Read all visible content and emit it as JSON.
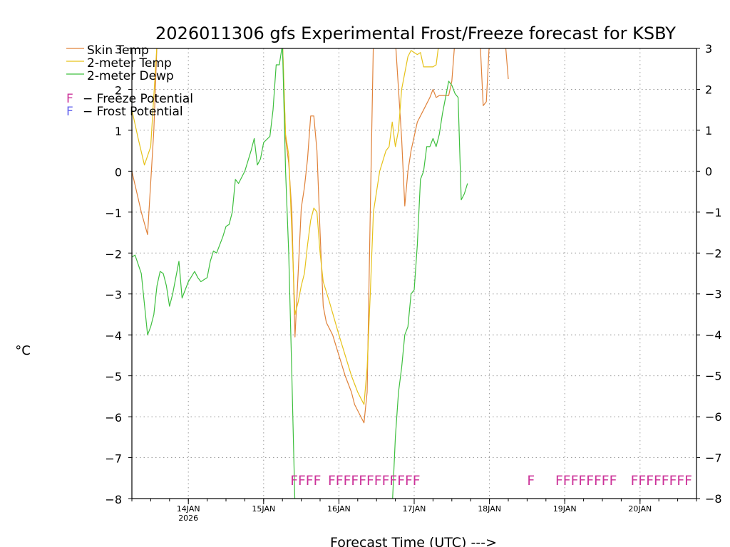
{
  "chart_data": {
    "type": "line",
    "title": "2026011306 gfs Experimental Frost/Freeze forecast for KSBY",
    "ylabel": "°C",
    "xlabel": "Forecast Time (UTC) --->",
    "ylim": [
      -8,
      3
    ],
    "xlim_hours": [
      0,
      180
    ],
    "y_ticks": [
      3,
      2,
      1,
      0,
      -1,
      -2,
      -3,
      -4,
      -5,
      -6,
      -7,
      -8
    ],
    "y_tick_labels": [
      "3",
      "2",
      "1",
      "0",
      "−1",
      "−2",
      "−3",
      "−4",
      "−5",
      "−6",
      "−7",
      "−8"
    ],
    "x_ticks": [
      {
        "hour": 18,
        "label": "14JAN",
        "sublabel": "2026"
      },
      {
        "hour": 42,
        "label": "15JAN",
        "sublabel": ""
      },
      {
        "hour": 66,
        "label": "16JAN",
        "sublabel": ""
      },
      {
        "hour": 90,
        "label": "17JAN",
        "sublabel": ""
      },
      {
        "hour": 114,
        "label": "18JAN",
        "sublabel": ""
      },
      {
        "hour": 138,
        "label": "19JAN",
        "sublabel": ""
      },
      {
        "hour": 162,
        "label": "20JAN",
        "sublabel": ""
      }
    ],
    "grid": true,
    "legend": {
      "placement": "top-left",
      "series_entries": [
        "Skin Temp",
        "2-meter Temp",
        "2-meter Dewp"
      ],
      "symbol_entries": [
        {
          "symbol": "F",
          "text": "− Freeze Potential",
          "color": "#cc3399"
        },
        {
          "symbol": "F",
          "text": "− Frost Potential",
          "color": "#6666ee"
        }
      ]
    },
    "series": [
      {
        "name": "Skin Temp",
        "color": "#e0823a",
        "points": [
          [
            0,
            0
          ],
          [
            3,
            -1
          ],
          [
            5,
            -1.55
          ],
          [
            7,
            1
          ],
          [
            8,
            3.1
          ],
          [
            null,
            null
          ],
          [
            48,
            3.2
          ],
          [
            49,
            0.8
          ],
          [
            50,
            0.2
          ],
          [
            51,
            -1
          ],
          [
            52,
            -4.05
          ],
          [
            53,
            -2.5
          ],
          [
            54,
            -0.9
          ],
          [
            55,
            -0.4
          ],
          [
            56,
            0.3
          ],
          [
            57,
            1.35
          ],
          [
            58,
            1.35
          ],
          [
            59,
            0.5
          ],
          [
            60,
            -1.5
          ],
          [
            61,
            -3.3
          ],
          [
            62,
            -3.7
          ],
          [
            64,
            -4
          ],
          [
            66,
            -4.5
          ],
          [
            68,
            -5
          ],
          [
            70,
            -5.4
          ],
          [
            71,
            -5.7
          ],
          [
            73,
            -6
          ],
          [
            74,
            -6.15
          ],
          [
            75,
            -5.4
          ],
          [
            76,
            -1
          ],
          [
            77,
            3.2
          ],
          [
            null,
            null
          ],
          [
            84,
            3.2
          ],
          [
            86,
            0.8
          ],
          [
            87,
            -0.85
          ],
          [
            88,
            0
          ],
          [
            89,
            0.5
          ],
          [
            91,
            1.2
          ],
          [
            93,
            1.5
          ],
          [
            95,
            1.8
          ],
          [
            96,
            2
          ],
          [
            97,
            1.8
          ],
          [
            98,
            1.85
          ],
          [
            101,
            1.85
          ],
          [
            102,
            2.2
          ],
          [
            103,
            3.2
          ],
          [
            null,
            null
          ],
          [
            111,
            3.2
          ],
          [
            112,
            1.6
          ],
          [
            113,
            1.7
          ],
          [
            114,
            3.2
          ],
          [
            null,
            null
          ],
          [
            119,
            3.2
          ],
          [
            120,
            2.25
          ]
        ]
      },
      {
        "name": "2-meter Temp",
        "color": "#e6c21a",
        "points": [
          [
            0,
            1.5
          ],
          [
            2,
            0.8
          ],
          [
            4,
            0.15
          ],
          [
            6,
            0.6
          ],
          [
            8,
            3.1
          ],
          [
            null,
            null
          ],
          [
            48,
            3.2
          ],
          [
            49,
            0.9
          ],
          [
            50,
            0.4
          ],
          [
            51,
            -1.5
          ],
          [
            52,
            -3.5
          ],
          [
            53,
            -3.2
          ],
          [
            54,
            -2.8
          ],
          [
            55,
            -2.5
          ],
          [
            56,
            -1.8
          ],
          [
            57,
            -1.2
          ],
          [
            58,
            -0.9
          ],
          [
            59,
            -1
          ],
          [
            60,
            -2
          ],
          [
            61,
            -2.7
          ],
          [
            63,
            -3.2
          ],
          [
            66,
            -4
          ],
          [
            70,
            -5
          ],
          [
            72,
            -5.4
          ],
          [
            74,
            -5.7
          ],
          [
            75,
            -4.8
          ],
          [
            76,
            -3
          ],
          [
            77,
            -1
          ],
          [
            79,
            0
          ],
          [
            81,
            0.5
          ],
          [
            82,
            0.6
          ],
          [
            83,
            1.2
          ],
          [
            84,
            0.6
          ],
          [
            85,
            1
          ],
          [
            86,
            2
          ],
          [
            88,
            2.8
          ],
          [
            89,
            2.95
          ],
          [
            91,
            2.85
          ],
          [
            92,
            2.9
          ],
          [
            93,
            2.55
          ],
          [
            96,
            2.55
          ],
          [
            97,
            2.6
          ],
          [
            98,
            3.2
          ]
        ]
      },
      {
        "name": "2-meter Dewp",
        "color": "#3ebf3e",
        "points": [
          [
            0,
            -2.1
          ],
          [
            1,
            -2.05
          ],
          [
            3,
            -2.5
          ],
          [
            5,
            -4
          ],
          [
            6,
            -3.8
          ],
          [
            7,
            -3.5
          ],
          [
            8,
            -2.8
          ],
          [
            9,
            -2.45
          ],
          [
            10,
            -2.5
          ],
          [
            11,
            -2.8
          ],
          [
            12,
            -3.3
          ],
          [
            13,
            -3
          ],
          [
            14,
            -2.6
          ],
          [
            15,
            -2.2
          ],
          [
            16,
            -3.1
          ],
          [
            18,
            -2.7
          ],
          [
            20,
            -2.45
          ],
          [
            21,
            -2.6
          ],
          [
            22,
            -2.7
          ],
          [
            24,
            -2.6
          ],
          [
            25,
            -2.2
          ],
          [
            26,
            -1.95
          ],
          [
            27,
            -2
          ],
          [
            29,
            -1.6
          ],
          [
            30,
            -1.35
          ],
          [
            31,
            -1.3
          ],
          [
            32,
            -1
          ],
          [
            33,
            -0.2
          ],
          [
            34,
            -0.3
          ],
          [
            36,
            0
          ],
          [
            38,
            0.5
          ],
          [
            39,
            0.8
          ],
          [
            40,
            0.15
          ],
          [
            41,
            0.3
          ],
          [
            42,
            0.7
          ],
          [
            44,
            0.85
          ],
          [
            45,
            1.5
          ],
          [
            46,
            2.6
          ],
          [
            47,
            2.6
          ],
          [
            48,
            3.1
          ],
          [
            49,
            0
          ],
          [
            50,
            -2
          ],
          [
            51,
            -5
          ],
          [
            52,
            -8.2
          ],
          [
            null,
            null
          ],
          [
            83,
            -8.2
          ],
          [
            84,
            -6.5
          ],
          [
            85,
            -5.4
          ],
          [
            86,
            -4.8
          ],
          [
            87,
            -4
          ],
          [
            88,
            -3.8
          ],
          [
            89,
            -3
          ],
          [
            90,
            -2.9
          ],
          [
            91,
            -1.8
          ],
          [
            92,
            -0.2
          ],
          [
            93,
            0
          ],
          [
            94,
            0.6
          ],
          [
            95,
            0.6
          ],
          [
            96,
            0.8
          ],
          [
            97,
            0.6
          ],
          [
            98,
            0.9
          ],
          [
            99,
            1.4
          ],
          [
            100,
            1.8
          ],
          [
            101,
            2.2
          ],
          [
            102,
            2.1
          ],
          [
            103,
            1.9
          ],
          [
            104,
            1.8
          ],
          [
            105,
            -0.7
          ],
          [
            106,
            -0.55
          ],
          [
            107,
            -0.3
          ]
        ]
      }
    ],
    "freeze_markers": [
      {
        "text": "FFFF",
        "start_hour": 50.5
      },
      {
        "text": "FFFFFFFFFFFF",
        "start_hour": 62.5
      },
      {
        "text": "F",
        "start_hour": 126
      },
      {
        "text": "FFFFFFFF",
        "start_hour": 135
      },
      {
        "text": "FFFFFFFF",
        "start_hour": 159
      }
    ],
    "freeze_marker_value": -7.55,
    "colors": {
      "freeze": "#cc3399",
      "frost": "#6666ee",
      "grid": "#999999"
    }
  }
}
